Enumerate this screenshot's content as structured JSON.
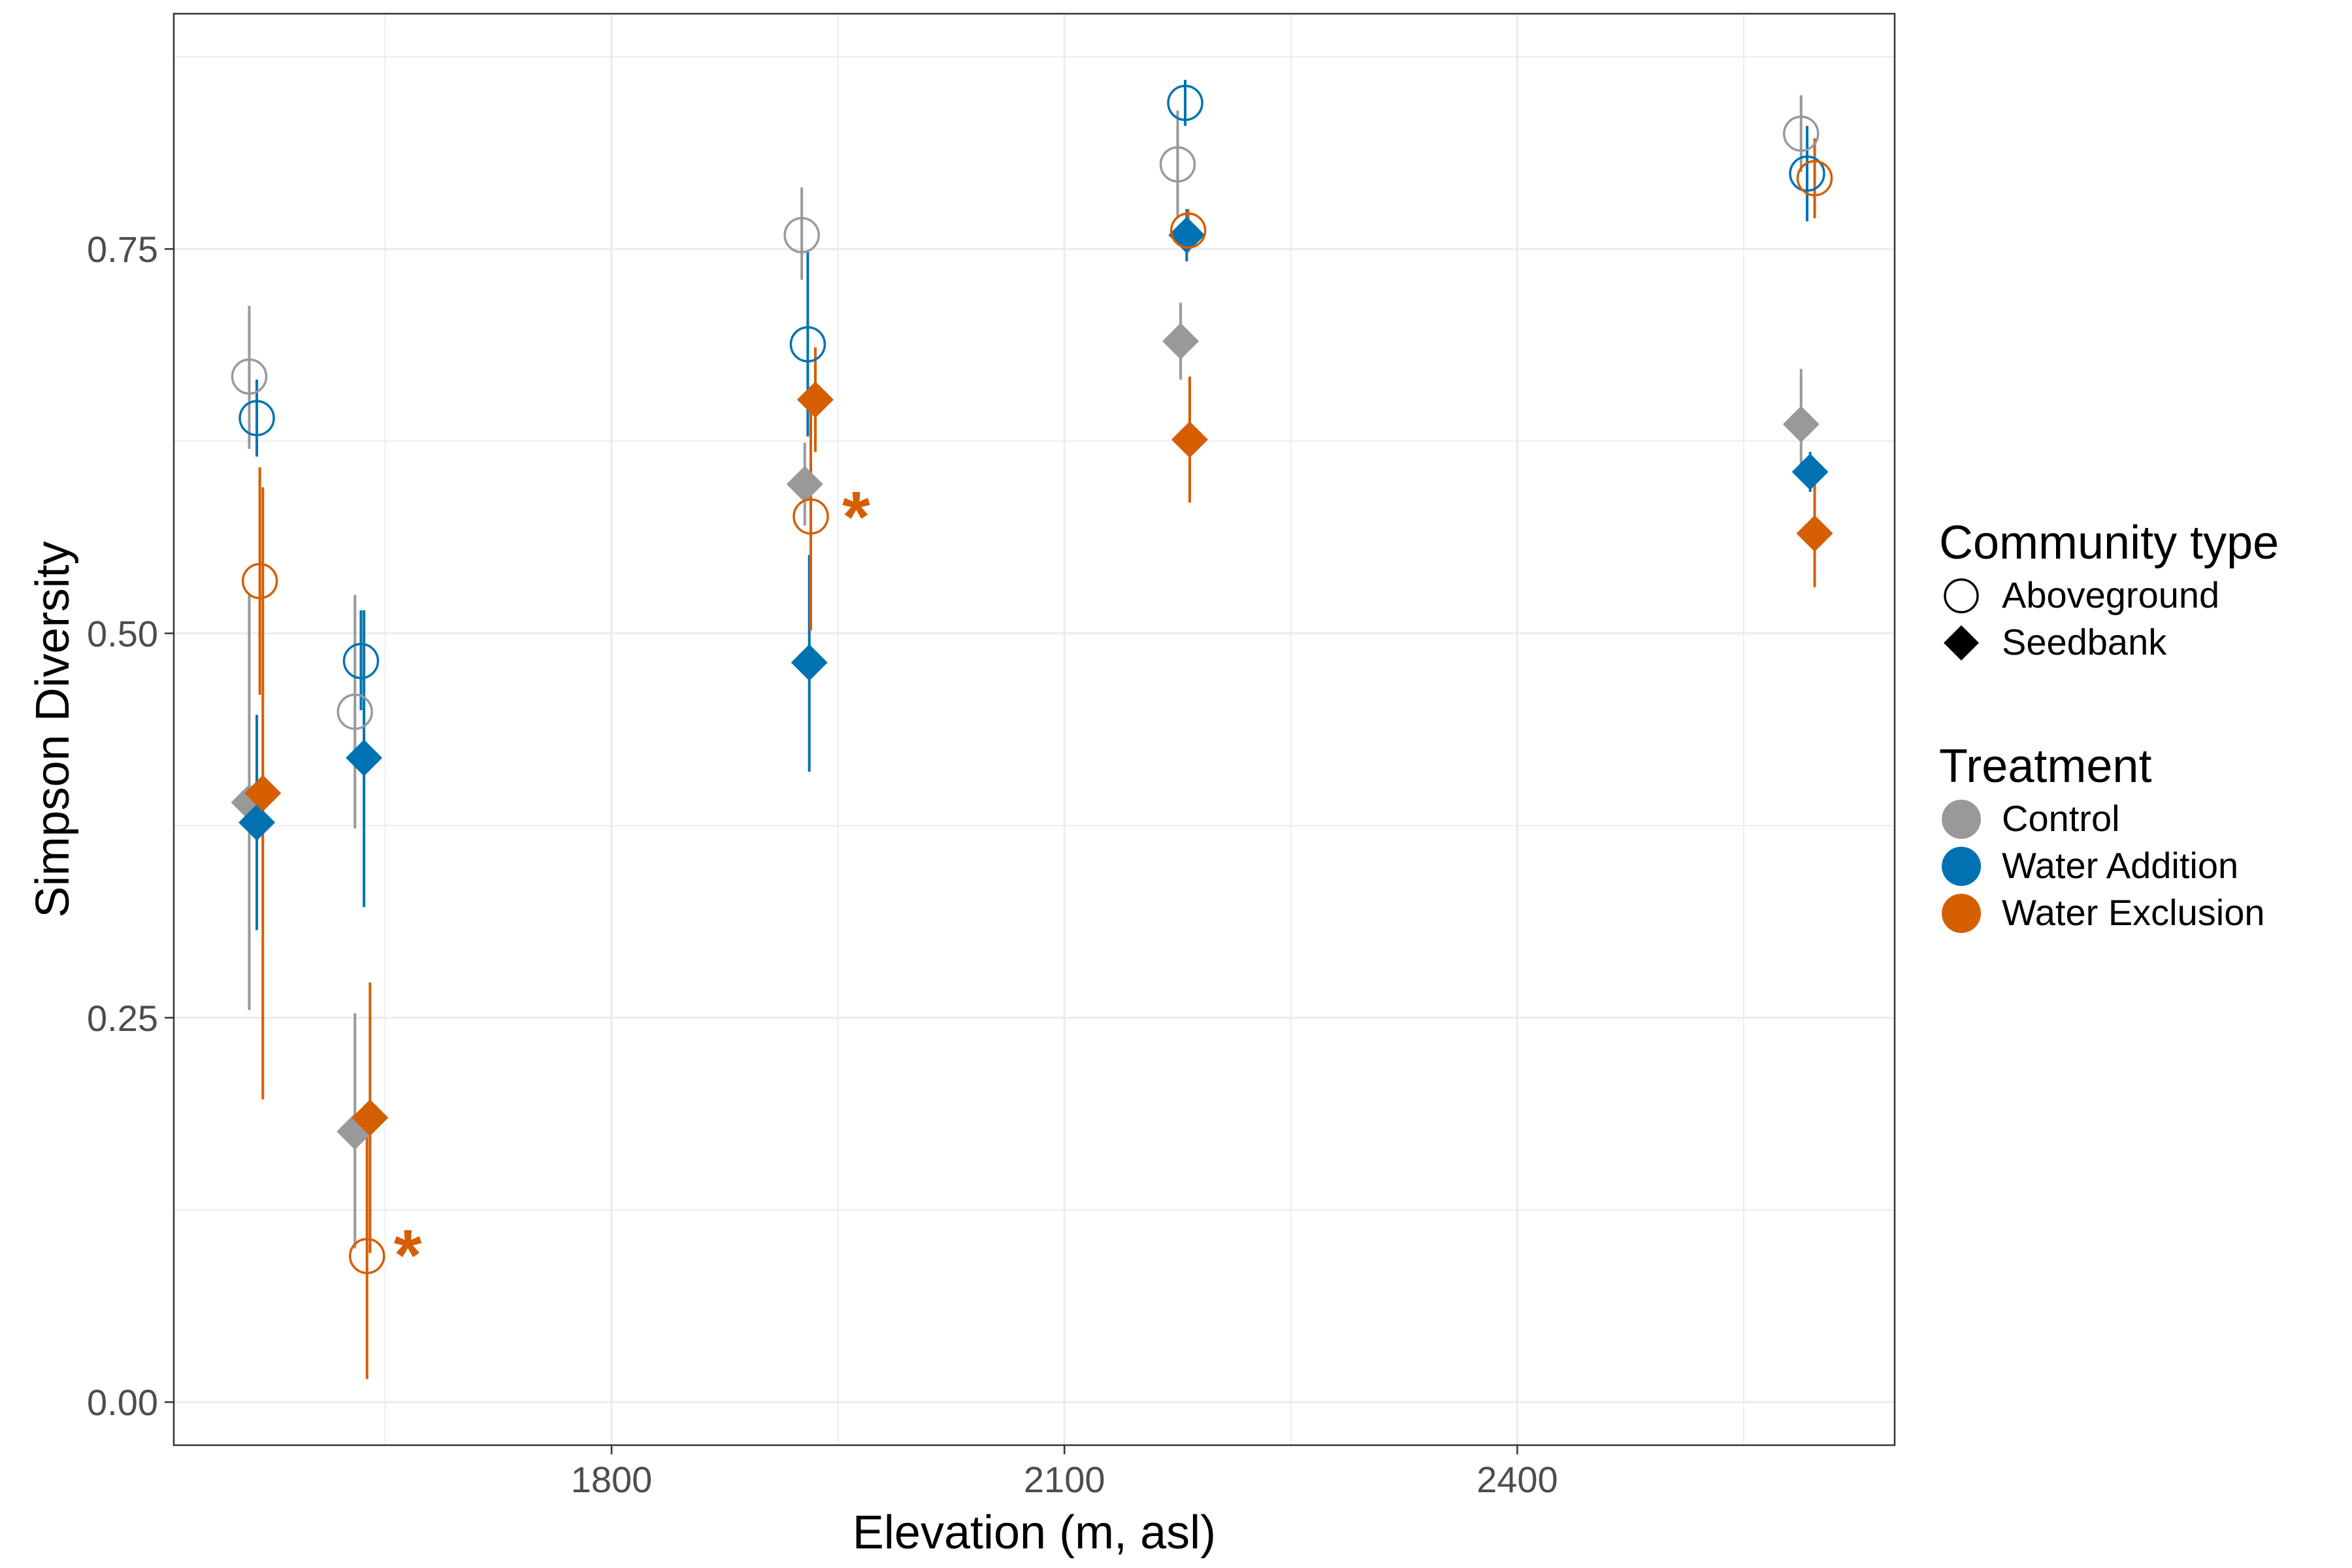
{
  "chart_data": {
    "type": "scatter",
    "title": "",
    "xlabel": "Elevation (m, asl)",
    "ylabel": "Simpson Diversity",
    "xlim": [
      1510,
      2650
    ],
    "ylim": [
      -0.028,
      0.903
    ],
    "x_ticks": [
      1800,
      2100,
      2400
    ],
    "x_tick_labels": [
      "1800",
      "2100",
      "2400"
    ],
    "y_ticks": [
      0.0,
      0.25,
      0.5,
      0.75
    ],
    "y_tick_labels": [
      "0.00",
      "0.25",
      "0.50",
      "0.75"
    ],
    "grid": true,
    "legend_position": "right",
    "legends": [
      {
        "title": "Community type",
        "entries": [
          {
            "label": "Aboveground",
            "shape": "open-circle"
          },
          {
            "label": "Seedbank",
            "shape": "diamond"
          }
        ]
      },
      {
        "title": "Treatment",
        "entries": [
          {
            "label": "Control",
            "color": "#999999"
          },
          {
            "label": "Water Addition",
            "color": "#0072B2"
          },
          {
            "label": "Water Exclusion",
            "color": "#D55E00"
          }
        ]
      }
    ],
    "series": [
      {
        "name": "Control",
        "color": "#999999",
        "points": [
          {
            "community": "Aboveground",
            "x": 1560,
            "y": 0.667,
            "lo": 0.62,
            "hi": 0.713
          },
          {
            "community": "Seedbank",
            "x": 1560,
            "y": 0.39,
            "lo": 0.255,
            "hi": 0.525
          },
          {
            "community": "Aboveground",
            "x": 1630,
            "y": 0.449,
            "lo": 0.373,
            "hi": 0.525
          },
          {
            "community": "Seedbank",
            "x": 1630,
            "y": 0.176,
            "lo": 0.1,
            "hi": 0.253
          },
          {
            "community": "Aboveground",
            "x": 1926,
            "y": 0.759,
            "lo": 0.73,
            "hi": 0.79
          },
          {
            "community": "Seedbank",
            "x": 1928,
            "y": 0.597,
            "lo": 0.57,
            "hi": 0.624
          },
          {
            "community": "Aboveground",
            "x": 2175,
            "y": 0.805,
            "lo": 0.77,
            "hi": 0.84
          },
          {
            "community": "Seedbank",
            "x": 2177,
            "y": 0.69,
            "lo": 0.665,
            "hi": 0.715
          },
          {
            "community": "Aboveground",
            "x": 2588,
            "y": 0.825,
            "lo": 0.8,
            "hi": 0.85
          },
          {
            "community": "Seedbank",
            "x": 2588,
            "y": 0.636,
            "lo": 0.6,
            "hi": 0.672
          }
        ]
      },
      {
        "name": "Water Addition",
        "color": "#0072B2",
        "points": [
          {
            "community": "Aboveground",
            "x": 1565,
            "y": 0.64,
            "lo": 0.615,
            "hi": 0.665
          },
          {
            "community": "Seedbank",
            "x": 1565,
            "y": 0.377,
            "lo": 0.307,
            "hi": 0.447
          },
          {
            "community": "Aboveground",
            "x": 1634,
            "y": 0.482,
            "lo": 0.45,
            "hi": 0.515
          },
          {
            "community": "Seedbank",
            "x": 1636,
            "y": 0.419,
            "lo": 0.322,
            "hi": 0.515
          },
          {
            "community": "Aboveground",
            "x": 1930,
            "y": 0.688,
            "lo": 0.628,
            "hi": 0.748
          },
          {
            "community": "Seedbank",
            "x": 1931,
            "y": 0.481,
            "lo": 0.41,
            "hi": 0.551
          },
          {
            "community": "Aboveground",
            "x": 2180,
            "y": 0.845,
            "lo": 0.83,
            "hi": 0.86
          },
          {
            "community": "Seedbank",
            "x": 2181,
            "y": 0.759,
            "lo": 0.742,
            "hi": 0.776
          },
          {
            "community": "Aboveground",
            "x": 2592,
            "y": 0.799,
            "lo": 0.768,
            "hi": 0.83
          },
          {
            "community": "Seedbank",
            "x": 2594,
            "y": 0.605,
            "lo": 0.592,
            "hi": 0.618
          }
        ]
      },
      {
        "name": "Water Exclusion",
        "color": "#D55E00",
        "points": [
          {
            "community": "Aboveground",
            "x": 1567,
            "y": 0.534,
            "lo": 0.46,
            "hi": 0.608
          },
          {
            "community": "Seedbank",
            "x": 1569,
            "y": 0.396,
            "lo": 0.197,
            "hi": 0.595
          },
          {
            "community": "Aboveground",
            "x": 1638,
            "y": 0.095,
            "lo": 0.015,
            "hi": 0.175
          },
          {
            "community": "Seedbank",
            "x": 1640,
            "y": 0.185,
            "lo": 0.097,
            "hi": 0.273
          },
          {
            "community": "Aboveground",
            "x": 1932,
            "y": 0.576,
            "lo": 0.502,
            "hi": 0.65
          },
          {
            "community": "Seedbank",
            "x": 1935,
            "y": 0.652,
            "lo": 0.618,
            "hi": 0.686
          },
          {
            "community": "Aboveground",
            "x": 2182,
            "y": 0.762,
            "lo": 0.748,
            "hi": 0.776
          },
          {
            "community": "Seedbank",
            "x": 2183,
            "y": 0.626,
            "lo": 0.585,
            "hi": 0.667
          },
          {
            "community": "Aboveground",
            "x": 2597,
            "y": 0.796,
            "lo": 0.77,
            "hi": 0.822
          },
          {
            "community": "Seedbank",
            "x": 2597,
            "y": 0.565,
            "lo": 0.53,
            "hi": 0.6
          }
        ]
      }
    ],
    "annotations": [
      {
        "text": "*",
        "x": 1665,
        "y": 0.1,
        "color": "#D55E00"
      },
      {
        "text": "*",
        "x": 1962,
        "y": 0.58,
        "color": "#D55E00"
      }
    ]
  }
}
